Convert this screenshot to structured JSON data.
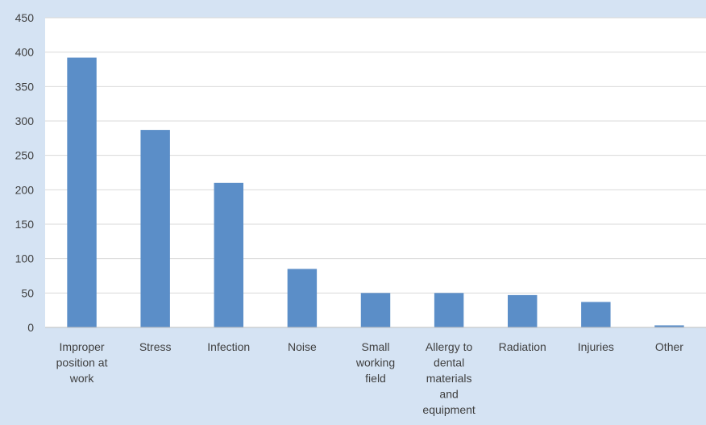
{
  "chart_data": {
    "type": "bar",
    "categories": [
      [
        "Improper",
        "position at",
        "work"
      ],
      [
        "Stress"
      ],
      [
        "Infection"
      ],
      [
        "Noise"
      ],
      [
        "Small",
        "working",
        "field"
      ],
      [
        "Allergy to",
        "dental",
        "materials",
        "and",
        "equipment"
      ],
      [
        "Radiation"
      ],
      [
        "Injuries"
      ],
      [
        "Other"
      ]
    ],
    "values": [
      392,
      287,
      210,
      85,
      50,
      50,
      47,
      37,
      3
    ],
    "ylim": [
      0,
      450
    ],
    "yticks": [
      0,
      50,
      100,
      150,
      200,
      250,
      300,
      350,
      400,
      450
    ],
    "grid": true,
    "legend": "none",
    "title": "",
    "xlabel": "",
    "ylabel": "",
    "colors": {
      "background": "#d5e3f3",
      "plot_area": "#ffffff",
      "bar": "#5b8ec8",
      "grid": "#d9d9d9",
      "text": "#404040"
    }
  }
}
